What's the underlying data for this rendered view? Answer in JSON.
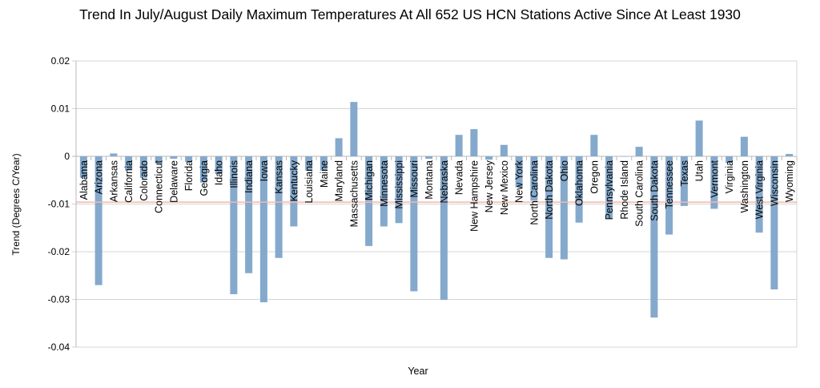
{
  "chart_data": {
    "type": "bar",
    "title": "Trend In July/August Daily Maximum Temperatures At All 652 US HCN Stations Active Since At Least 1930",
    "xlabel": "Year",
    "ylabel": "Trend (Degrees C/Year)",
    "ylim": [
      -0.04,
      0.02
    ],
    "yticks": [
      "0.02",
      "0.01",
      "0",
      "-0.01",
      "-0.02",
      "-0.03",
      "-0.04"
    ],
    "grid": true,
    "legend": "none",
    "bar_color": "#84a9cc",
    "reference_line": {
      "value": -0.0096,
      "color": "#f4b8ad"
    },
    "categories": [
      "Alabama",
      "Arizona",
      "Arkansas",
      "California",
      "Colorado",
      "Connecticut",
      "Delaware",
      "Florida",
      "Georgia",
      "Idaho",
      "Illinois",
      "Indiana",
      "Iowa",
      "Kansas",
      "Kentucky",
      "Louisiana",
      "Maine",
      "Maryland",
      "Massachusetts",
      "Michigan",
      "Minnesota",
      "Mississippi",
      "Missouri",
      "Montana",
      "Nebraska",
      "Nevada",
      "New  Hampshire",
      "New  Jersey",
      "New  Mexico",
      "New  York",
      "North  Carolina",
      "North  Dakota",
      "Ohio",
      "Oklahoma",
      "Oregon",
      "Pennsylvania",
      "Rhode  Island",
      "South  Carolina",
      "South  Dakota",
      "Tennessee",
      "Texas",
      "Utah",
      "Vermont",
      "Virginia",
      "Washington",
      "West  Virginia",
      "Wisconsin",
      "Wyoming"
    ],
    "values": [
      -0.0045,
      -0.027,
      0.0006,
      -0.003,
      -0.0045,
      -0.0015,
      -0.0005,
      -0.0012,
      -0.0055,
      -0.0037,
      -0.0289,
      -0.0245,
      -0.0306,
      -0.0213,
      -0.0147,
      -0.003,
      -0.003,
      0.0038,
      0.0114,
      -0.0188,
      -0.0147,
      -0.014,
      -0.0283,
      -0.0005,
      -0.0301,
      0.0045,
      0.0057,
      -0.0007,
      0.0024,
      -0.0065,
      -0.0093,
      -0.0213,
      -0.0216,
      -0.0139,
      0.0045,
      -0.013,
      0.0,
      0.002,
      -0.0338,
      -0.0164,
      -0.0104,
      0.0075,
      -0.011,
      -0.0014,
      0.0041,
      -0.016,
      -0.0279,
      0.0005
    ]
  }
}
